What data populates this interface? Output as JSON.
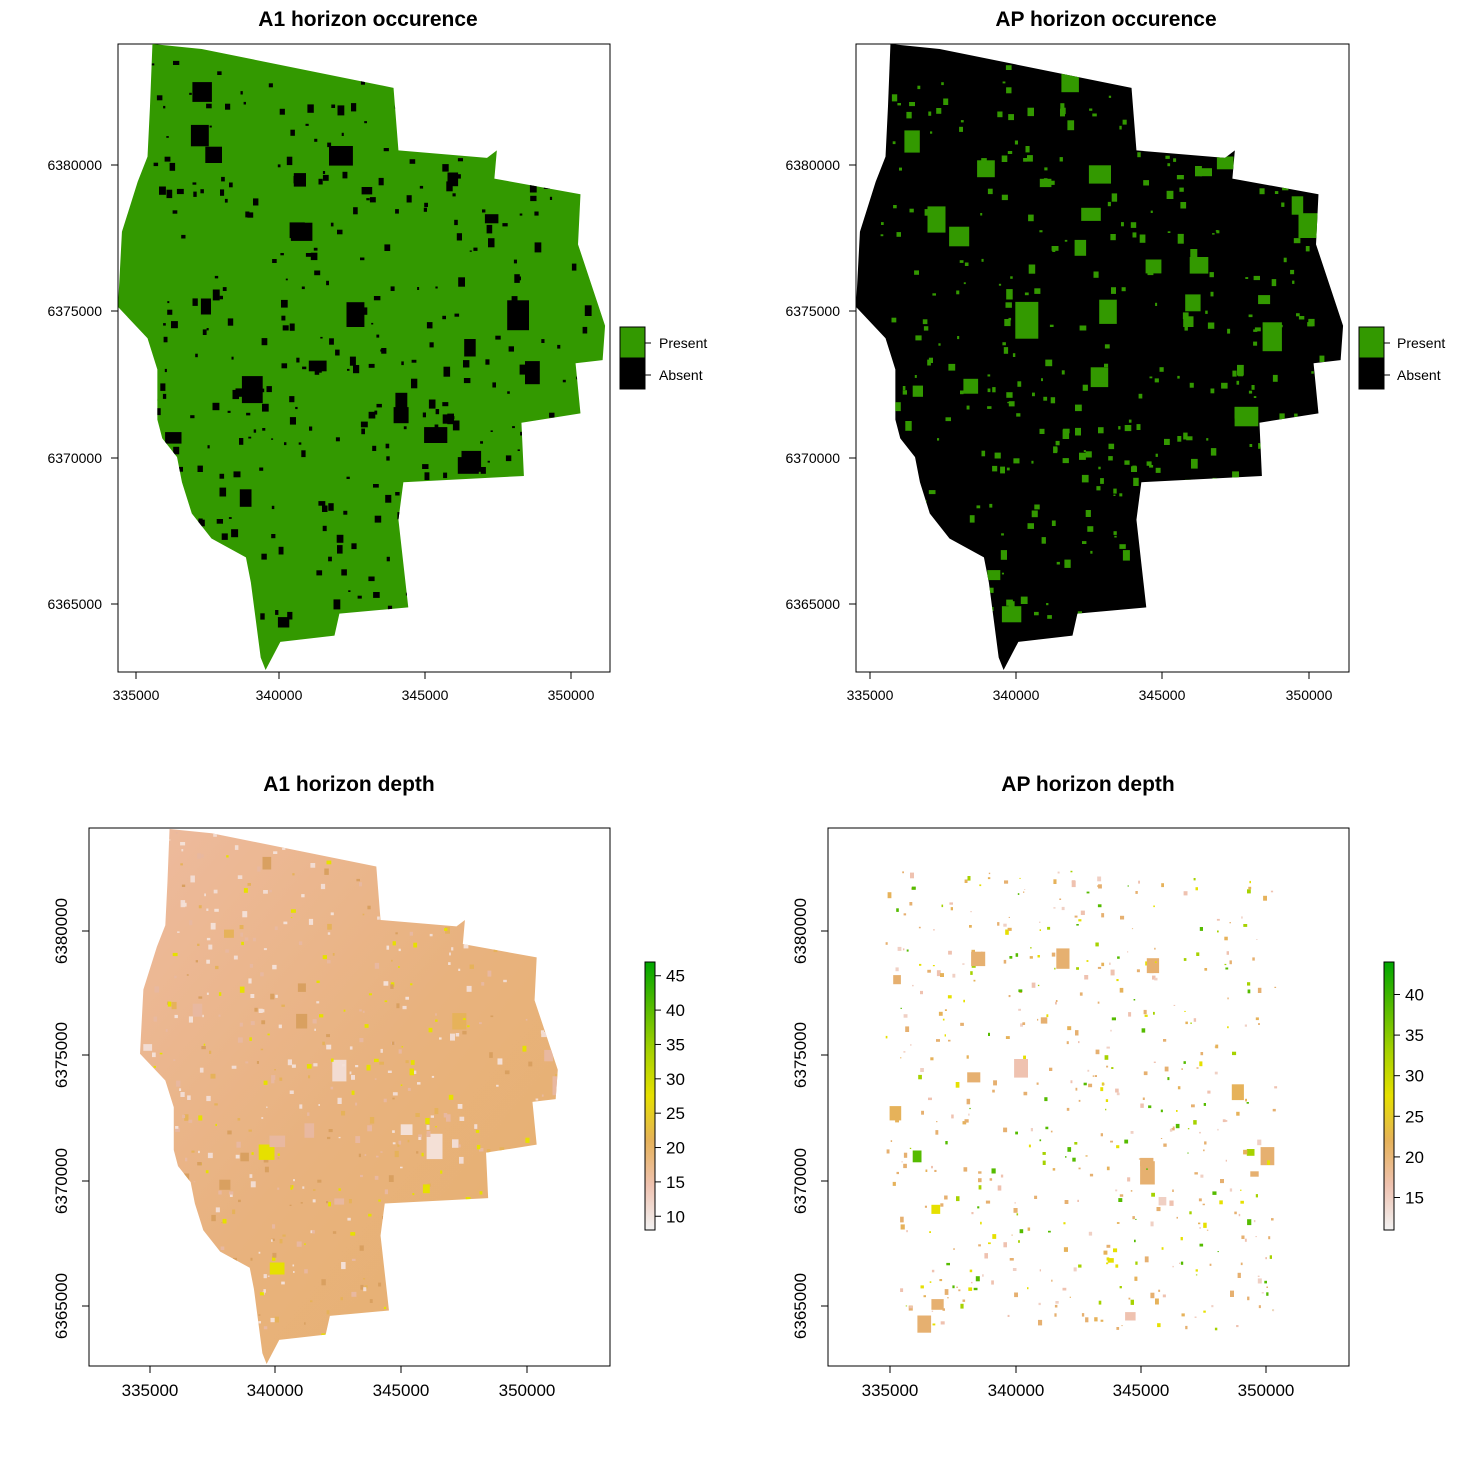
{
  "panels": [
    {
      "id": "a1-occurrence",
      "title": "A1 horizon occurence",
      "kind": "categorical",
      "x_ticks": [
        "335000",
        "340000",
        "345000",
        "350000"
      ],
      "y_ticks": [
        "6365000",
        "6370000",
        "6375000",
        "6380000"
      ],
      "background_color": "#339900",
      "speckle_color": "#000000",
      "legend": [
        {
          "label": "Present",
          "color": "#339900"
        },
        {
          "label": "Absent",
          "color": "#000000"
        }
      ]
    },
    {
      "id": "ap-occurrence",
      "title": "AP horizon occurence",
      "kind": "categorical",
      "x_ticks": [
        "335000",
        "340000",
        "345000",
        "350000"
      ],
      "y_ticks": [
        "6365000",
        "6370000",
        "6375000",
        "6380000"
      ],
      "background_color": "#000000",
      "speckle_color": "#339900",
      "legend": [
        {
          "label": "Present",
          "color": "#339900"
        },
        {
          "label": "Absent",
          "color": "#000000"
        }
      ]
    },
    {
      "id": "a1-depth",
      "title": "A1 horizon depth",
      "kind": "continuous",
      "x_ticks": [
        "335000",
        "340000",
        "345000",
        "350000"
      ],
      "y_ticks": [
        "6365000",
        "6370000",
        "6375000",
        "6380000"
      ],
      "colorbar": {
        "min": 8,
        "max": 47,
        "ticks": [
          "10",
          "15",
          "20",
          "25",
          "30",
          "35",
          "40",
          "45"
        ],
        "colors": [
          "#f2f2f2",
          "#efc2b0",
          "#e6b25a",
          "#e6e000",
          "#a6d200",
          "#55bb00",
          "#00a600"
        ]
      }
    },
    {
      "id": "ap-depth",
      "title": "AP horizon depth",
      "kind": "continuous",
      "x_ticks": [
        "335000",
        "340000",
        "345000",
        "350000"
      ],
      "y_ticks": [
        "6365000",
        "6370000",
        "6375000",
        "6380000"
      ],
      "colorbar": {
        "min": 11,
        "max": 44,
        "ticks": [
          "15",
          "20",
          "25",
          "30",
          "35",
          "40"
        ],
        "colors": [
          "#f2f2f2",
          "#efc2b0",
          "#e6b25a",
          "#e6e000",
          "#a6d200",
          "#55bb00",
          "#00a600"
        ]
      }
    }
  ]
}
